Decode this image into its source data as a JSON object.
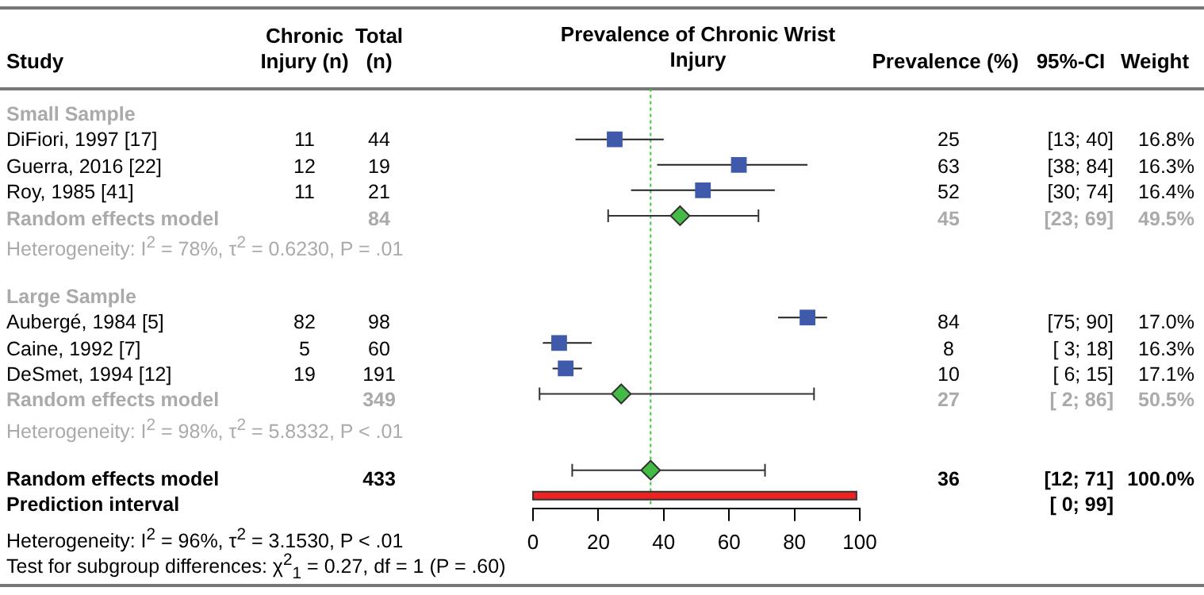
{
  "chart_data": [
    {
      "type": "other",
      "ylabel": "Study",
      "categories": [
        "Chronic Injury (n)",
        "Total (n)",
        "Prevalence (%)",
        "95%-CI",
        "Weight"
      ],
      "y_categories": [
        "Small Sample",
        "DiFiori, 1997 [17]",
        "Guerra, 2016 [22]",
        "Roy, 1985 [41]",
        "Random effects model",
        "Heterogeneity: I$^{2}$ = 78%, τ$^{2}$ = 0.6230, P = .01",
        null,
        "Large Sample",
        "Aubergé, 1984 [5]",
        "Caine, 1992 [7]",
        "DeSmet, 1994 [12]",
        "Random effects model",
        "Heterogeneity: I$^{2}$ = 98%, τ$^{2}$ = 5.8332, P < .01",
        null,
        "Random effects model",
        "Prediction interval"
      ],
      "cell_labels": [
        [
          null,
          null,
          null,
          null,
          null
        ],
        [
          "11",
          "44",
          "25",
          "[13; 40]",
          "16.8%"
        ],
        [
          "12",
          "19",
          "63",
          "[38; 84]",
          "16.3%"
        ],
        [
          "11",
          "21",
          "52",
          "[30; 74]",
          "16.4%"
        ],
        [
          null,
          "84",
          "45",
          "[23; 69]",
          "49.5%"
        ],
        [
          null,
          null,
          null,
          null,
          null
        ],
        [
          null,
          null,
          null,
          null,
          null
        ],
        [
          null,
          null,
          null,
          null,
          null
        ],
        [
          "82",
          "98",
          "84",
          "[75; 90]",
          "17.0%"
        ],
        [
          "5",
          "60",
          "8",
          "[ 3; 18]",
          "16.3%"
        ],
        [
          "19",
          "191",
          "10",
          "[ 6; 15]",
          "17.1%"
        ],
        [
          null,
          "349",
          "27",
          "[ 2; 86]",
          "50.5%"
        ],
        [
          null,
          null,
          null,
          null,
          null
        ],
        [
          null,
          null,
          null,
          null,
          null
        ],
        [
          null,
          "433",
          "36",
          "[12; 71]",
          "100.0%"
        ],
        [
          null,
          null,
          null,
          "[ 0; 99]",
          null
        ]
      ],
      "annotations": [
        "Heterogeneity: I$^{2}$ = 96%, τ$^{2}$ = 3.1530, P < .01",
        "Test for subgroup differences: χ$^{2}$$_{1}$ = 0.27, df = 1 (P = .60)"
      ]
    },
    {
      "type": "scatter",
      "title": "Prevalence of Chronic Wrist Injury",
      "orientation": "horizontal",
      "categories": [
        null,
        null,
        null,
        null,
        null,
        null,
        null,
        null,
        null,
        null,
        null,
        null,
        null,
        null,
        null,
        null
      ],
      "xlim": [
        0,
        100
      ],
      "xticks": [
        0,
        20,
        40,
        60,
        80,
        100
      ],
      "tick_labels": "x",
      "grid": false,
      "ref_lines": [
        {
          "axis": "x",
          "value": 36,
          "color": "#33cc33",
          "line_style": "dotted"
        }
      ],
      "series": [
        {
          "type": "scatter",
          "marker": "square",
          "color": "#3f5aab",
          "values": [
            null,
            25,
            63,
            52,
            null,
            null,
            null,
            null,
            84,
            8,
            10,
            null,
            null,
            null,
            null,
            null
          ],
          "errors": [
            null,
            [
              13,
              40
            ],
            [
              38,
              84
            ],
            [
              30,
              74
            ],
            null,
            null,
            null,
            null,
            [
              75,
              90
            ],
            [
              3,
              18
            ],
            [
              6,
              15
            ],
            null,
            null,
            null,
            null,
            null
          ]
        },
        {
          "type": "scatter",
          "marker": "diamond",
          "color": "#44bb44",
          "values": [
            null,
            null,
            null,
            null,
            45,
            null,
            null,
            null,
            null,
            null,
            null,
            27,
            null,
            null,
            null,
            null
          ],
          "errors": [
            null,
            null,
            null,
            null,
            [
              23,
              69
            ],
            null,
            null,
            null,
            null,
            null,
            null,
            [
              2,
              86
            ],
            null,
            null,
            null,
            null
          ]
        },
        {
          "type": "scatter",
          "marker": "diamond",
          "color": "#44bb44",
          "values": [
            null,
            null,
            null,
            null,
            null,
            null,
            null,
            null,
            null,
            null,
            null,
            null,
            null,
            null,
            36,
            null
          ],
          "errors": [
            null,
            null,
            null,
            null,
            null,
            null,
            null,
            null,
            null,
            null,
            null,
            null,
            null,
            null,
            [
              12,
              71
            ],
            null
          ]
        },
        {
          "type": "bar",
          "color": "#ee2222",
          "base": [
            null,
            null,
            null,
            null,
            null,
            null,
            null,
            null,
            null,
            null,
            null,
            null,
            null,
            null,
            null,
            0
          ],
          "values": [
            null,
            null,
            null,
            null,
            null,
            null,
            null,
            null,
            null,
            null,
            null,
            null,
            null,
            null,
            null,
            99
          ]
        }
      ]
    }
  ]
}
